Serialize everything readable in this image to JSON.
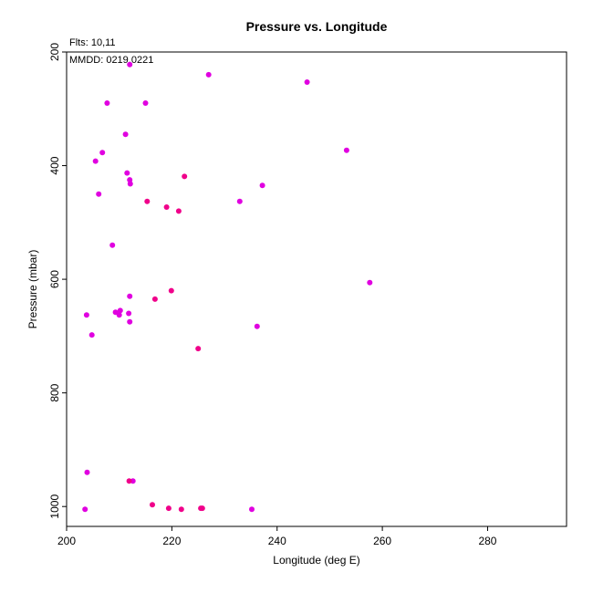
{
  "chart_data": {
    "type": "scatter",
    "title": "Pressure vs. Longitude",
    "xlabel": "Longitude (deg E)",
    "ylabel": "Pressure (mbar)",
    "xlim": [
      200,
      295
    ],
    "ylim": [
      200,
      1035
    ],
    "y_reversed": true,
    "x_ticks": [
      200,
      220,
      240,
      260,
      280
    ],
    "y_ticks": [
      200,
      400,
      600,
      800,
      1000
    ],
    "grid": false,
    "annotations": [
      "Flts: 10,11",
      "MMDD: 0219,0221"
    ],
    "series": [
      {
        "color": "#e000e0",
        "points": [
          [
            212.0,
            222
          ],
          [
            227.0,
            240
          ],
          [
            245.7,
            253
          ],
          [
            207.7,
            290
          ],
          [
            215.0,
            290
          ],
          [
            211.2,
            345
          ],
          [
            253.2,
            373
          ],
          [
            206.8,
            377
          ],
          [
            205.5,
            392
          ],
          [
            211.5,
            413
          ],
          [
            212.0,
            425
          ],
          [
            212.1,
            432
          ],
          [
            237.2,
            435
          ],
          [
            206.1,
            450
          ],
          [
            232.9,
            463
          ],
          [
            208.7,
            540
          ],
          [
            257.6,
            606
          ],
          [
            212.0,
            630
          ],
          [
            210.2,
            655
          ],
          [
            209.3,
            658
          ],
          [
            211.8,
            660
          ],
          [
            203.8,
            663
          ],
          [
            210.0,
            663
          ],
          [
            212.0,
            675
          ],
          [
            236.2,
            683
          ],
          [
            204.8,
            698
          ],
          [
            203.9,
            940
          ],
          [
            212.6,
            955
          ],
          [
            203.5,
            1005
          ],
          [
            235.2,
            1005
          ]
        ]
      },
      {
        "color": "#f0008a",
        "points": [
          [
            222.4,
            419
          ],
          [
            215.3,
            463
          ],
          [
            219.0,
            473
          ],
          [
            221.3,
            480
          ],
          [
            219.9,
            620
          ],
          [
            216.8,
            635
          ],
          [
            225.0,
            722
          ],
          [
            211.9,
            955
          ],
          [
            216.3,
            997
          ],
          [
            219.4,
            1003
          ],
          [
            221.8,
            1005
          ],
          [
            225.8,
            1003
          ],
          [
            225.5,
            1003
          ]
        ]
      }
    ]
  }
}
